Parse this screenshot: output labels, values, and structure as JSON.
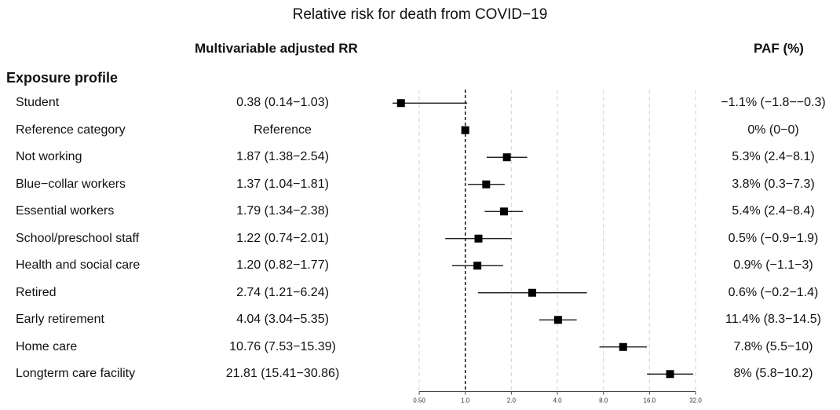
{
  "title": "Relative risk for death from COVID−19",
  "columns": {
    "rr_header": "Multivariable adjusted RR",
    "paf_header": "PAF (%)"
  },
  "section_label": "Exposure profile",
  "colors": {
    "marker": "#000000",
    "grid": "#d9d9d9",
    "reference_line": "#000000"
  },
  "chart_data": {
    "type": "forest",
    "title": "Relative risk for death from COVID−19",
    "xscale": "log2",
    "xlim": [
      0.5,
      32
    ],
    "xticks": [
      {
        "value": 0.5,
        "label": "0.50"
      },
      {
        "value": 1.0,
        "label": "1.0"
      },
      {
        "value": 2.0,
        "label": "2.0"
      },
      {
        "value": 4.0,
        "label": "4.0"
      },
      {
        "value": 8.0,
        "label": "8.0"
      },
      {
        "value": 16.0,
        "label": "16.0"
      },
      {
        "value": 32.0,
        "label": "32.0"
      }
    ],
    "reference_value": 1.0,
    "grid": true,
    "rows": [
      {
        "label": "Student",
        "rr": 0.38,
        "lo": 0.14,
        "hi": 1.03,
        "rr_text": "0.38 (0.14−1.03)",
        "paf_text": "−1.1% (−1.8−−0.3)"
      },
      {
        "label": "Reference category",
        "rr": 1.0,
        "lo": 1.0,
        "hi": 1.0,
        "rr_text": "Reference",
        "paf_text": "0% (0−0)"
      },
      {
        "label": "Not working",
        "rr": 1.87,
        "lo": 1.38,
        "hi": 2.54,
        "rr_text": "1.87 (1.38−2.54)",
        "paf_text": "5.3% (2.4−8.1)"
      },
      {
        "label": "Blue−collar workers",
        "rr": 1.37,
        "lo": 1.04,
        "hi": 1.81,
        "rr_text": "1.37 (1.04−1.81)",
        "paf_text": "3.8% (0.3−7.3)"
      },
      {
        "label": "Essential workers",
        "rr": 1.79,
        "lo": 1.34,
        "hi": 2.38,
        "rr_text": "1.79 (1.34−2.38)",
        "paf_text": "5.4% (2.4−8.4)"
      },
      {
        "label": "School/preschool staff",
        "rr": 1.22,
        "lo": 0.74,
        "hi": 2.01,
        "rr_text": "1.22 (0.74−2.01)",
        "paf_text": "0.5% (−0.9−1.9)"
      },
      {
        "label": "Health and social care",
        "rr": 1.2,
        "lo": 0.82,
        "hi": 1.77,
        "rr_text": "1.20 (0.82−1.77)",
        "paf_text": "0.9% (−1.1−3)"
      },
      {
        "label": "Retired",
        "rr": 2.74,
        "lo": 1.21,
        "hi": 6.24,
        "rr_text": "2.74 (1.21−6.24)",
        "paf_text": "0.6% (−0.2−1.4)"
      },
      {
        "label": "Early retirement",
        "rr": 4.04,
        "lo": 3.04,
        "hi": 5.35,
        "rr_text": "4.04 (3.04−5.35)",
        "paf_text": "11.4% (8.3−14.5)"
      },
      {
        "label": "Home care",
        "rr": 10.76,
        "lo": 7.53,
        "hi": 15.39,
        "rr_text": "10.76 (7.53−15.39)",
        "paf_text": "7.8% (5.5−10)"
      },
      {
        "label": "Longterm care facility",
        "rr": 21.81,
        "lo": 15.41,
        "hi": 30.86,
        "rr_text": "21.81 (15.41−30.86)",
        "paf_text": "8% (5.8−10.2)"
      }
    ]
  }
}
